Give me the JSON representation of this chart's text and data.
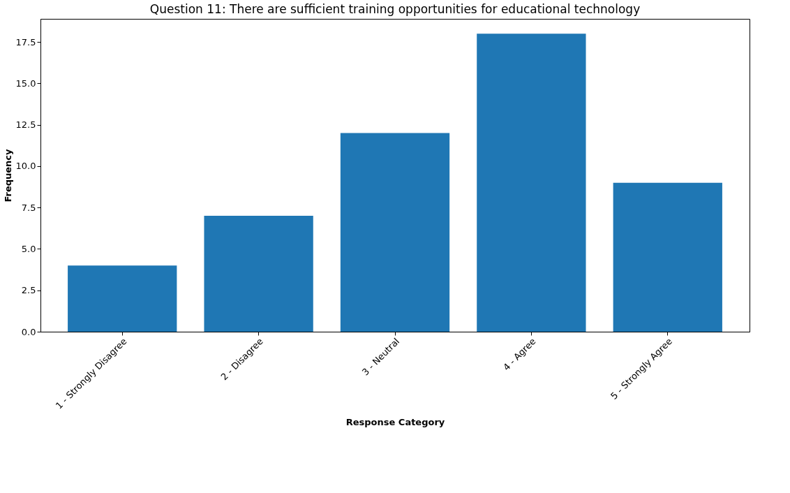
{
  "chart_data": {
    "type": "bar",
    "title": "Question 11: There are sufficient training opportunities for educational technology",
    "xlabel": "Response Category",
    "ylabel": "Frequency",
    "categories": [
      "1 - Strongly Disagree",
      "2 - Disagree",
      "3 - Neutral",
      "4 - Agree",
      "5 - Strongly Agree"
    ],
    "values": [
      4,
      7,
      12,
      18,
      9
    ],
    "color": "#1f77b4",
    "ylim": [
      0,
      18.9
    ],
    "yticks": [
      {
        "value": 0,
        "label": "0.0"
      },
      {
        "value": 2.5,
        "label": "2.5"
      },
      {
        "value": 5,
        "label": "5.0"
      },
      {
        "value": 7.5,
        "label": "7.5"
      },
      {
        "value": 10,
        "label": "10.0"
      },
      {
        "value": 12.5,
        "label": "12.5"
      },
      {
        "value": 15,
        "label": "15.0"
      },
      {
        "value": 17.5,
        "label": "17.5"
      }
    ],
    "grid": false
  }
}
